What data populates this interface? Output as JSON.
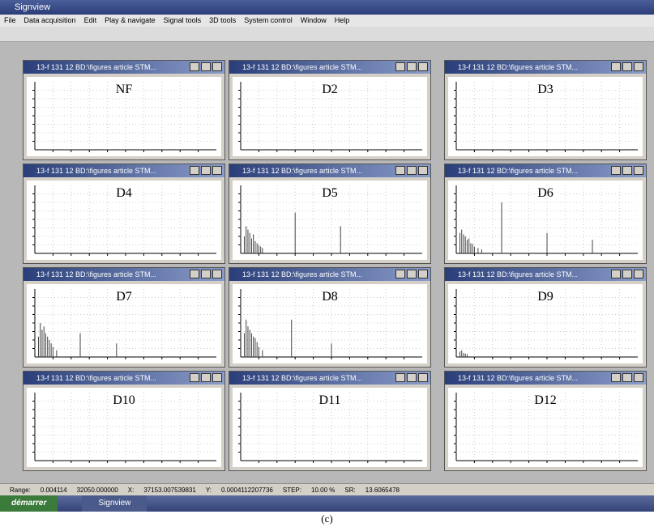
{
  "app": {
    "title": "Signview",
    "menu": [
      "File",
      "Data acquisition",
      "Edit",
      "Play & navigate",
      "Signal tools",
      "3D tools",
      "System control",
      "Window",
      "Help"
    ]
  },
  "windows": [
    {
      "title": "13-f 131 12 BD:\\figures article STM...",
      "label": "NF"
    },
    {
      "title": "13-f 131 12 BD:\\figures article STM...",
      "label": "D2"
    },
    {
      "title": "13-f 131 12 BD:\\figures article STM...",
      "label": "D3"
    },
    {
      "title": "13-f 131 12 BD:\\figures article STM...",
      "label": "D4"
    },
    {
      "title": "13-f 131 12 BD:\\figures article STM...",
      "label": "D5",
      "peaks": {
        "x": [
          2,
          3,
          4,
          5,
          6,
          7,
          8,
          9,
          10,
          11,
          12,
          30,
          55
        ],
        "values": [
          25,
          40,
          35,
          30,
          22,
          28,
          18,
          15,
          12,
          10,
          8,
          60,
          40
        ]
      }
    },
    {
      "title": "13-f 131 12 BD:\\figures article STM...",
      "label": "D6",
      "peaks": {
        "x": [
          2,
          3,
          4,
          5,
          6,
          7,
          8,
          9,
          10,
          12,
          14,
          25,
          50,
          75
        ],
        "values": [
          30,
          35,
          28,
          25,
          20,
          22,
          15,
          14,
          10,
          8,
          6,
          75,
          30,
          20
        ]
      }
    },
    {
      "title": "13-f 131 12 BD:\\figures article STM...",
      "label": "D7",
      "peaks": {
        "x": [
          2,
          3,
          4,
          5,
          6,
          7,
          8,
          9,
          10,
          12,
          25,
          45
        ],
        "values": [
          30,
          50,
          40,
          45,
          35,
          30,
          25,
          20,
          15,
          10,
          35,
          20
        ]
      }
    },
    {
      "title": "13-f 131 12 BD:\\figures article STM...",
      "label": "D8",
      "peaks": {
        "x": [
          2,
          3,
          4,
          5,
          6,
          7,
          8,
          9,
          10,
          12,
          28,
          50
        ],
        "values": [
          35,
          55,
          45,
          40,
          35,
          30,
          28,
          22,
          15,
          10,
          55,
          20
        ]
      }
    },
    {
      "title": "13-f 131 12 BD:\\figures article STM...",
      "label": "D9",
      "peaks": {
        "x": [
          2,
          3,
          4,
          5,
          6
        ],
        "values": [
          8,
          10,
          6,
          5,
          4
        ]
      }
    },
    {
      "title": "13-f 131 12 BD:\\figures article STM...",
      "label": "D10"
    },
    {
      "title": "13-f 131 12 BD:\\figures article STM...",
      "label": "D11"
    },
    {
      "title": "13-f 131 12 BD:\\figures article STM...",
      "label": "D12"
    }
  ],
  "status": {
    "fields": [
      "Range:",
      "0.004114",
      "32050.000000",
      "X:",
      "37153.007539831",
      "Y:",
      "0.0004112207736",
      "STEP:",
      "10.00 %",
      "SR:",
      "13.6065478"
    ]
  },
  "taskbar": {
    "start": "démarrer",
    "items": [
      "Signview"
    ]
  },
  "caption": "(c)"
}
